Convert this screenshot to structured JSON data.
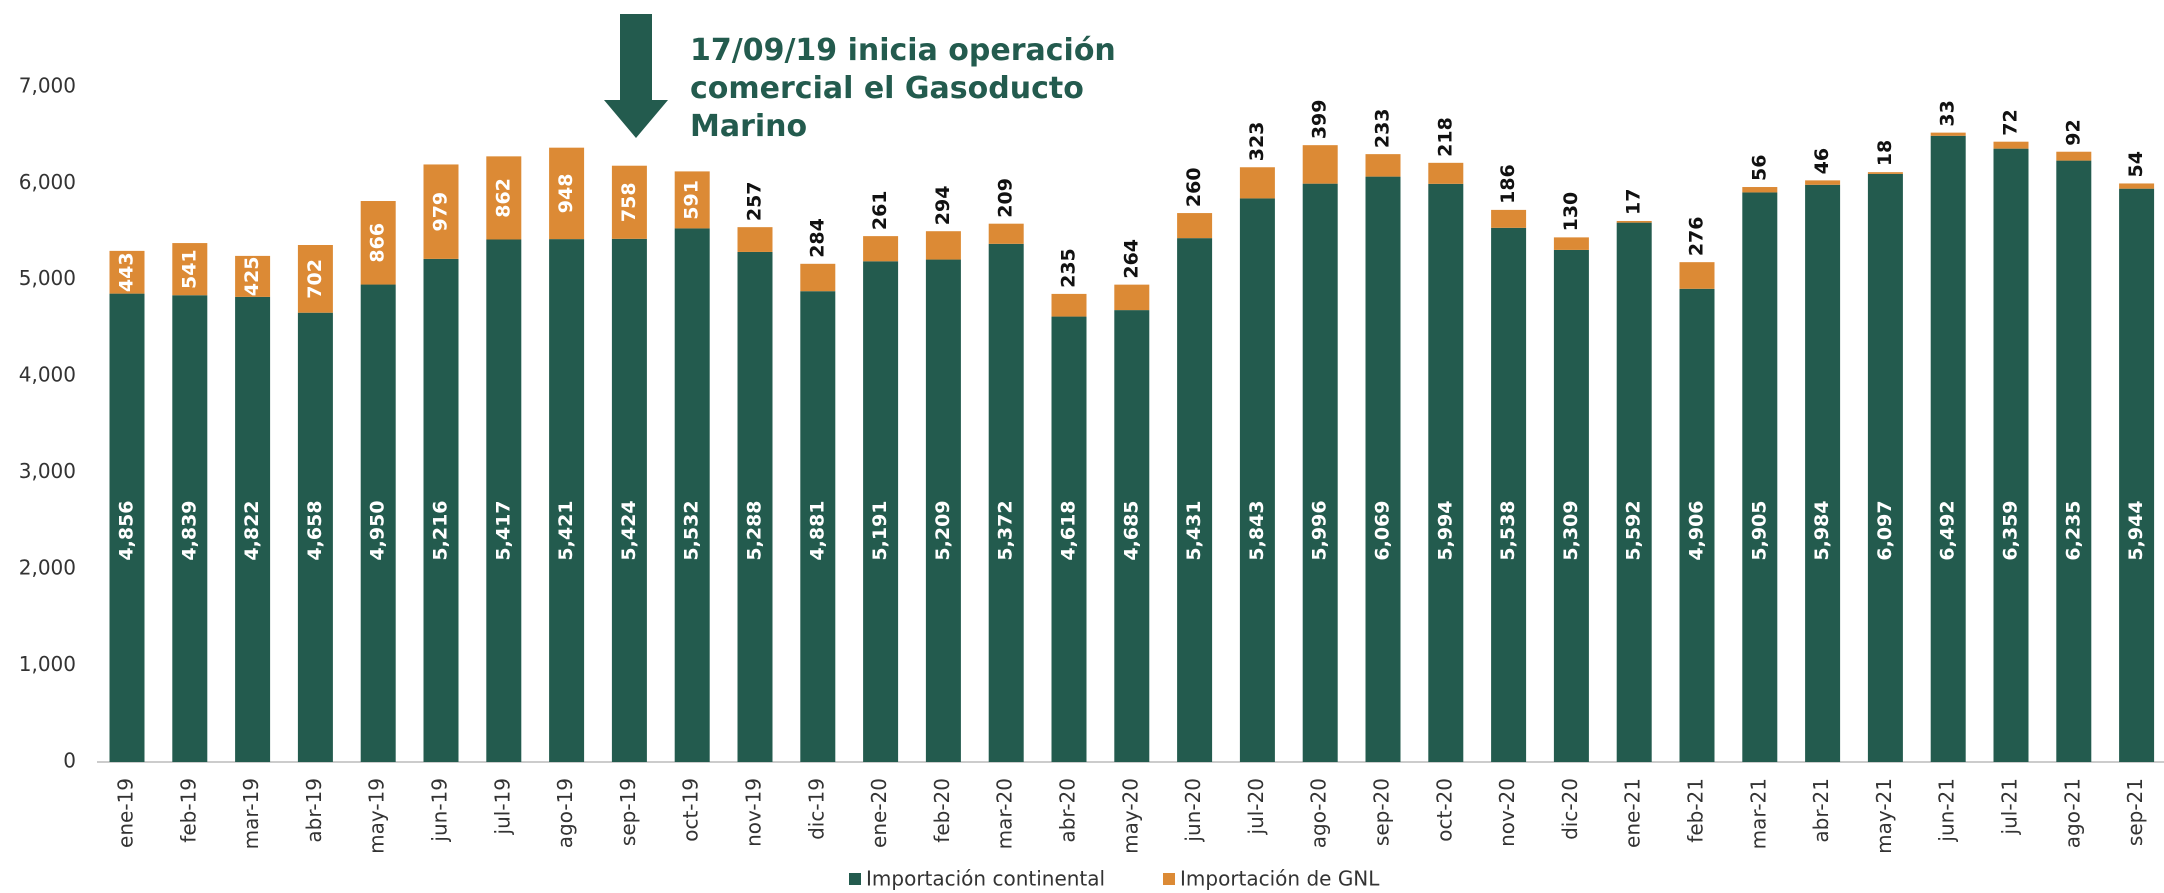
{
  "chart_data": {
    "type": "stacked_bar",
    "annotation": [
      "17/09/19 inicia operación",
      "comercial  el  Gasoducto",
      "Marino"
    ],
    "categories": [
      "ene-19",
      "feb-19",
      "mar-19",
      "abr-19",
      "may-19",
      "jun-19",
      "jul-19",
      "ago-19",
      "sep-19",
      "oct-19",
      "nov-19",
      "dic-19",
      "ene-20",
      "feb-20",
      "mar-20",
      "abr-20",
      "may-20",
      "jun-20",
      "jul-20",
      "ago-20",
      "sep-20",
      "oct-20",
      "nov-20",
      "dic-20",
      "ene-21",
      "feb-21",
      "mar-21",
      "abr-21",
      "may-21",
      "jun-21",
      "jul-21",
      "ago-21",
      "sep-21"
    ],
    "series": [
      {
        "name": "Importación continental",
        "color": "#235b4e",
        "values": [
          4856,
          4839,
          4822,
          4658,
          4950,
          5216,
          5417,
          5421,
          5424,
          5532,
          5288,
          4881,
          5191,
          5209,
          5372,
          4618,
          4685,
          5431,
          5843,
          5996,
          6069,
          5994,
          5538,
          5309,
          5592,
          4906,
          5905,
          5984,
          6097,
          6492,
          6359,
          6235,
          5944
        ],
        "value_labels": [
          "4,856",
          "4,839",
          "4,822",
          "4,658",
          "4,950",
          "5,216",
          "5,417",
          "5,421",
          "5,424",
          "5,532",
          "5,288",
          "4,881",
          "5,191",
          "5,209",
          "5,372",
          "4,618",
          "4,685",
          "5,431",
          "5,843",
          "5,996",
          "6,069",
          "5,994",
          "5,538",
          "5,309",
          "5,592",
          "4,906",
          "5,905",
          "5,984",
          "6,097",
          "6,492",
          "6,359",
          "6,235",
          "5,944"
        ]
      },
      {
        "name": "Importación de GNL",
        "color": "#dc8a35",
        "values": [
          443,
          541,
          425,
          702,
          866,
          979,
          862,
          948,
          758,
          591,
          257,
          284,
          261,
          294,
          209,
          235,
          264,
          260,
          323,
          399,
          233,
          218,
          186,
          130,
          17,
          276,
          56,
          46,
          18,
          33,
          72,
          92,
          54
        ]
      }
    ],
    "ylim": [
      0,
      7900
    ],
    "yticks": [
      0,
      {
        "value": 1000,
        "label": "1,000"
      },
      {
        "value": 2000,
        "label": "2,000"
      },
      {
        "value": 3000,
        "label": "3,000"
      },
      {
        "value": 4000,
        "label": "4,000"
      },
      {
        "value": 5000,
        "label": "5,000"
      },
      {
        "value": 6000,
        "label": "6,000"
      },
      {
        "value": 7000,
        "label": "7,000"
      }
    ]
  }
}
